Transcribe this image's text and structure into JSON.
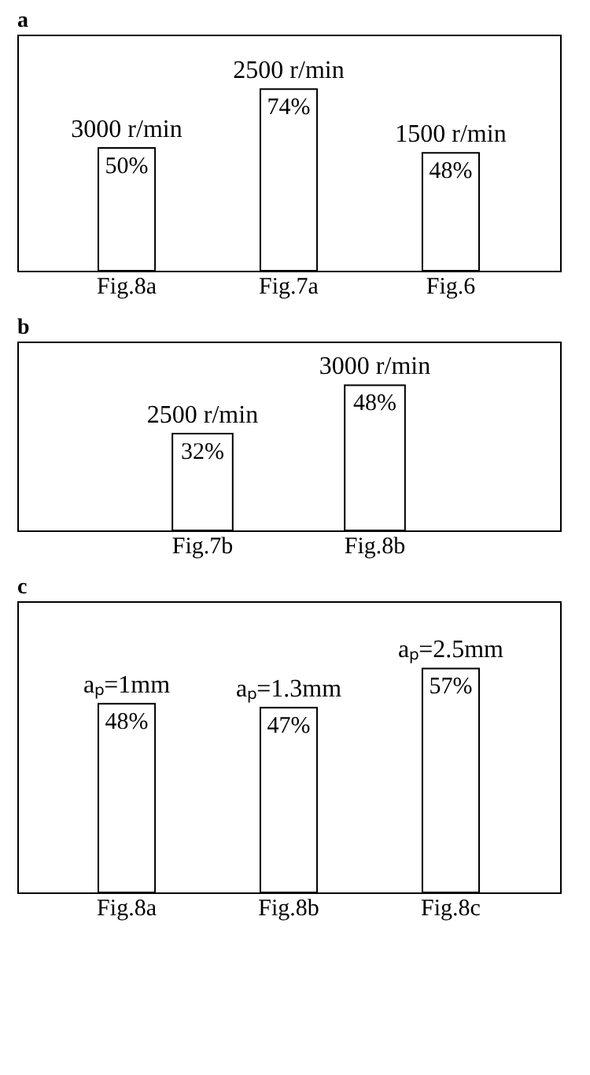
{
  "chart_data": [
    {
      "type": "bar",
      "title": "a",
      "categories": [
        "Fig.8a",
        "Fig.7a",
        "Fig.6"
      ],
      "values": [
        50,
        74,
        48
      ],
      "color": "#ffffff",
      "value_labels": [
        "50%",
        "74%",
        "48%"
      ],
      "annotations": [
        {
          "text": "3000 r/min",
          "x": "Fig.8a",
          "y": 50
        },
        {
          "text": "2500 r/min",
          "x": "Fig.7a",
          "y": 74
        },
        {
          "text": "1500 r/min",
          "x": "Fig.6",
          "y": 48
        }
      ]
    },
    {
      "type": "bar",
      "title": "b",
      "categories": [
        "Fig.7b",
        "Fig.8b"
      ],
      "values": [
        32,
        48
      ],
      "color": "#ffffff",
      "value_labels": [
        "32%",
        "48%"
      ],
      "annotations": [
        {
          "text": "2500 r/min",
          "x": "Fig.7b",
          "y": 32
        },
        {
          "text": "3000 r/min",
          "x": "Fig.8b",
          "y": 48
        }
      ]
    },
    {
      "type": "bar",
      "title": "c",
      "categories": [
        "Fig.8a",
        "Fig.8b",
        "Fig.8c"
      ],
      "values": [
        48,
        47,
        57
      ],
      "color": "#ffffff",
      "value_labels": [
        "48%",
        "47%",
        "57%"
      ],
      "annotations": [
        {
          "text": "aₚ=1mm",
          "x": "Fig.8a",
          "y": 48
        },
        {
          "text": "aₚ=1.3mm",
          "x": "Fig.8b",
          "y": 47
        },
        {
          "text": "aₚ=2.5mm",
          "x": "Fig.8c",
          "y": 57
        }
      ]
    }
  ]
}
